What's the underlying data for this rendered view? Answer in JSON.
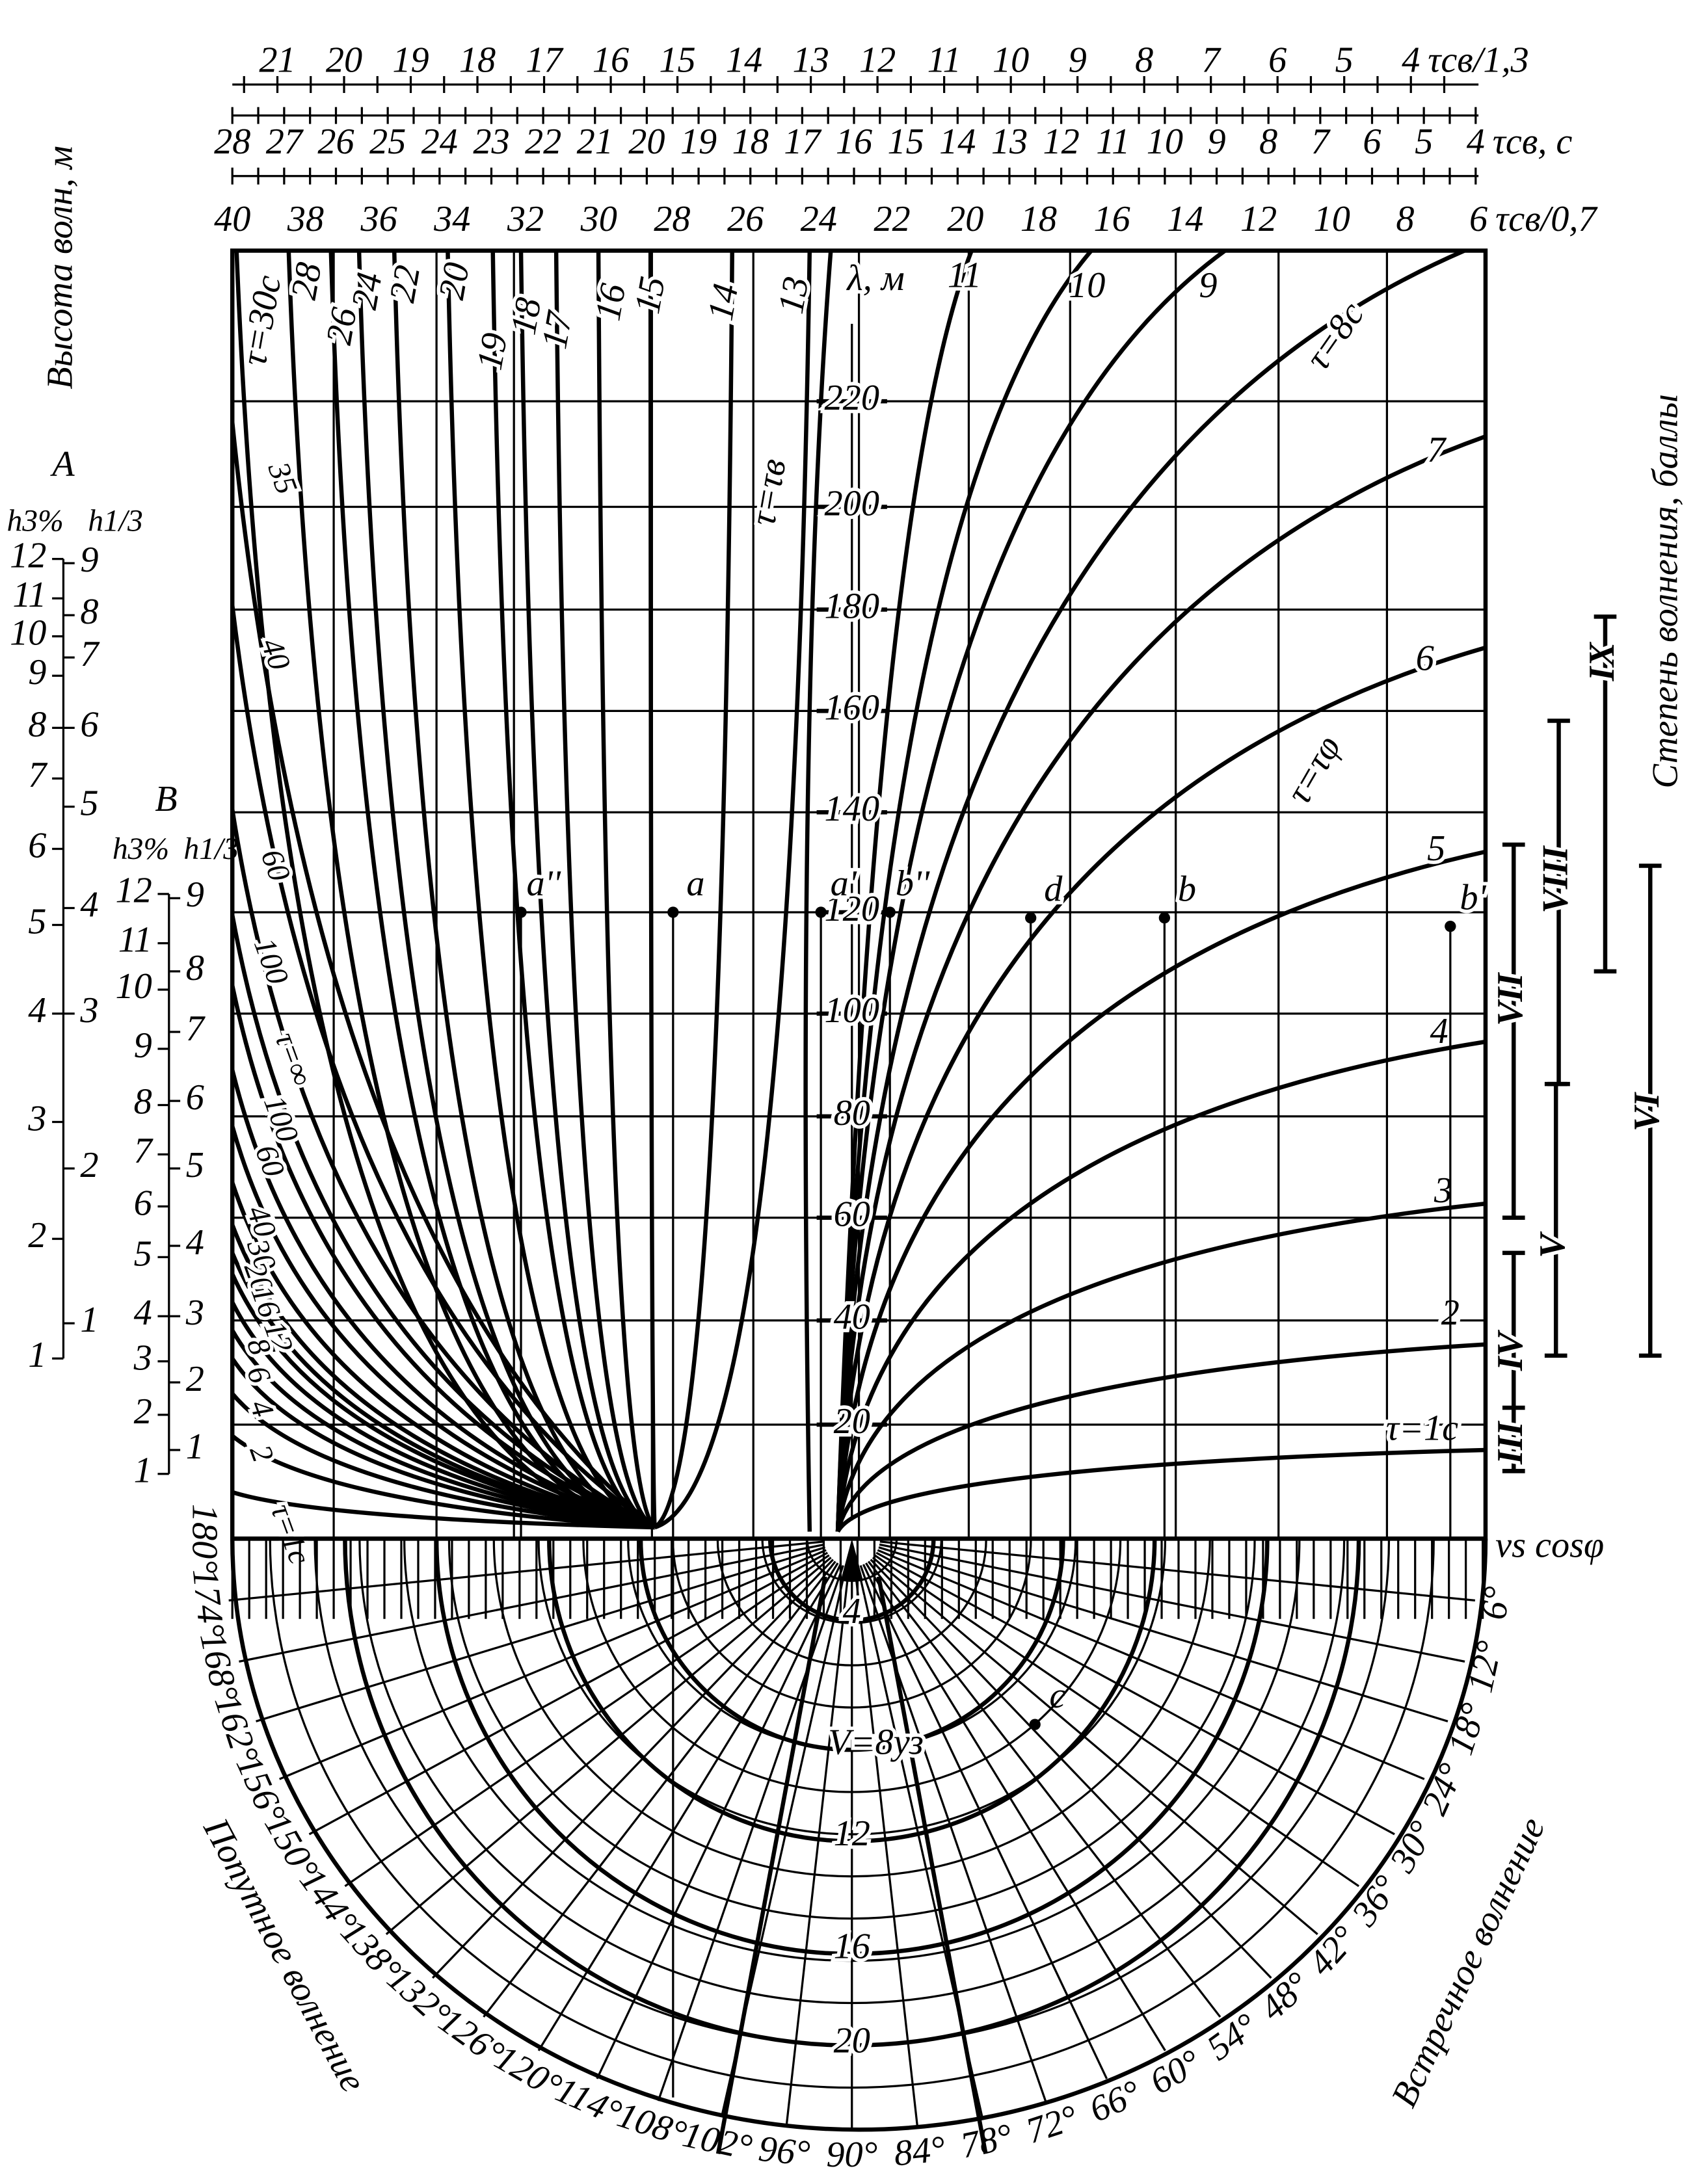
{
  "top_scales": [
    {
      "label": "τсв/1,3",
      "ticks": [
        21,
        20,
        19,
        18,
        17,
        16,
        15,
        14,
        13,
        12,
        11,
        10,
        9,
        8,
        7,
        6,
        5,
        4
      ]
    },
    {
      "label": "τсв, с",
      "ticks": [
        28,
        27,
        26,
        25,
        24,
        23,
        22,
        21,
        20,
        19,
        18,
        17,
        16,
        15,
        14,
        13,
        12,
        11,
        10,
        9,
        8,
        7,
        6,
        5,
        4
      ]
    },
    {
      "label": "τсв/0,7",
      "ticks": [
        40,
        38,
        36,
        34,
        32,
        30,
        28,
        26,
        24,
        22,
        20,
        18,
        16,
        14,
        12,
        10,
        8,
        6
      ]
    }
  ],
  "lambda_axis": {
    "label": "λ, м",
    "ticks": [
      220,
      200,
      180,
      160,
      140,
      120,
      100,
      80,
      60,
      40,
      20
    ]
  },
  "curves_right": [
    "11",
    "10",
    "9",
    "τ=8с",
    "7",
    "6",
    "5",
    "4",
    "3",
    "2",
    "τ=1с"
  ],
  "curves_top_left": [
    "τ=30с",
    "28",
    "26",
    "24",
    "22",
    "20",
    "19",
    "18",
    "17",
    "16",
    "15",
    "14",
    "13"
  ],
  "curves_left_edge": [
    "35",
    "40",
    "60",
    "100",
    "τ=∞",
    "100",
    "60",
    "40",
    "30",
    "20",
    "16",
    "12",
    "8",
    "6",
    "4",
    "2",
    "τ=1с"
  ],
  "curve_annotations": [
    "τ=τв",
    "τ=τφ"
  ],
  "points": [
    "a''",
    "a",
    "a'",
    "b''",
    "d",
    "b",
    "b'",
    "c"
  ],
  "wave_height": {
    "title": "Высота волн, м",
    "scale_a": {
      "label": "A",
      "h3_label": "h3%",
      "h13_label": "h1/3",
      "h3": [
        12,
        11,
        10,
        9,
        8,
        7,
        6,
        5,
        4,
        3,
        2,
        1
      ],
      "h13": [
        9,
        8,
        7,
        6,
        5,
        4,
        3,
        2,
        1
      ]
    },
    "scale_b": {
      "label": "B",
      "h3_label": "h3%",
      "h13_label": "h1/3",
      "h3": [
        12,
        11,
        10,
        9,
        8,
        7,
        6,
        5,
        4,
        3,
        2,
        1
      ],
      "h13": [
        9,
        8,
        7,
        6,
        5,
        4,
        3,
        2,
        1
      ]
    }
  },
  "sea_state": {
    "title": "Степень волнения, баллы",
    "grades": [
      "IX",
      "VIII",
      "VII",
      "VI",
      "V",
      "IV",
      "III"
    ]
  },
  "polar": {
    "axis_label": "vs cosφ",
    "angles": [
      "180°",
      "174°",
      "168°",
      "162°",
      "156°",
      "150°",
      "144°",
      "138°",
      "132°",
      "126°",
      "120°",
      "114°",
      "108°",
      "102°",
      "96°",
      "90°",
      "84°",
      "78°",
      "72°",
      "66°",
      "60°",
      "54°",
      "48°",
      "42°",
      "36°",
      "30°",
      "24°",
      "18°",
      "12°",
      "6°"
    ],
    "speeds": [
      "4",
      "V=8уз",
      "12",
      "16",
      "20"
    ],
    "following": "Попутное волнение",
    "head": "Встречное волнение"
  }
}
